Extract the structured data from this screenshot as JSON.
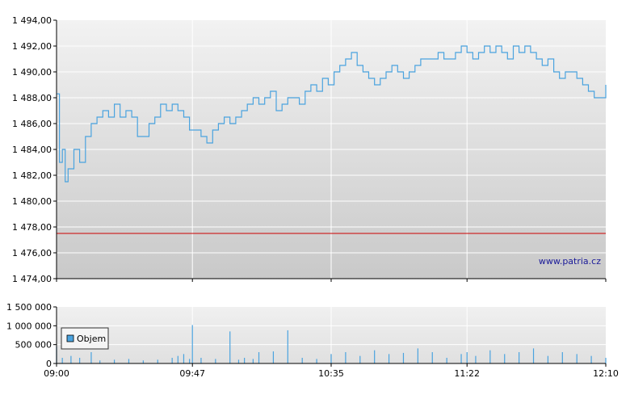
{
  "chart_data": [
    {
      "type": "line",
      "y_ticks": [
        "1 494,00",
        "1 492,00",
        "1 490,00",
        "1 488,00",
        "1 486,00",
        "1 484,00",
        "1 482,00",
        "1 480,00",
        "1 478,00",
        "1 476,00",
        "1 474,00"
      ],
      "ylim": [
        1474,
        1494
      ],
      "xlim": [
        "09:00",
        "12:10"
      ],
      "reference_line": {
        "value": 1477.5,
        "color": "#cc0000"
      },
      "series_color": "#4aa3df",
      "series": [
        {
          "x": [
            "09:00",
            "09:01",
            "09:02",
            "09:03",
            "09:04",
            "09:06",
            "09:08",
            "09:10",
            "09:12",
            "09:14",
            "09:16",
            "09:18",
            "09:20",
            "09:22",
            "09:24",
            "09:26",
            "09:28",
            "09:30",
            "09:32",
            "09:34",
            "09:36",
            "09:38",
            "09:40",
            "09:42",
            "09:44",
            "09:46",
            "09:48",
            "09:50",
            "09:52",
            "09:54",
            "09:56",
            "09:58",
            "10:00",
            "10:02",
            "10:04",
            "10:06",
            "10:08",
            "10:10",
            "10:12",
            "10:14",
            "10:16",
            "10:18",
            "10:20",
            "10:22",
            "10:24",
            "10:26",
            "10:28",
            "10:30",
            "10:32",
            "10:34",
            "10:36",
            "10:38",
            "10:40",
            "10:42",
            "10:44",
            "10:46",
            "10:48",
            "10:50",
            "10:52",
            "10:54",
            "10:56",
            "10:58",
            "11:00",
            "11:02",
            "11:04",
            "11:06",
            "11:08",
            "11:10",
            "11:12",
            "11:14",
            "11:16",
            "11:18",
            "11:20",
            "11:22",
            "11:24",
            "11:26",
            "11:28",
            "11:30",
            "11:32",
            "11:34",
            "11:36",
            "11:38",
            "11:40",
            "11:42",
            "11:44",
            "11:46",
            "11:48",
            "11:50",
            "11:52",
            "11:54",
            "11:56",
            "11:58",
            "12:00",
            "12:02",
            "12:04",
            "12:06",
            "12:08",
            "12:10"
          ],
          "values": [
            1488.3,
            1483.0,
            1484.0,
            1481.5,
            1482.5,
            1484.0,
            1483.0,
            1485.0,
            1486.0,
            1486.5,
            1487.0,
            1486.5,
            1487.5,
            1486.5,
            1487.0,
            1486.5,
            1485.0,
            1485.0,
            1486.0,
            1486.5,
            1487.5,
            1487.0,
            1487.5,
            1487.0,
            1486.5,
            1485.5,
            1485.5,
            1485.0,
            1484.5,
            1485.5,
            1486.0,
            1486.5,
            1486.0,
            1486.5,
            1487.0,
            1487.5,
            1488.0,
            1487.5,
            1488.0,
            1488.5,
            1487.0,
            1487.5,
            1488.0,
            1488.0,
            1487.5,
            1488.5,
            1489.0,
            1488.5,
            1489.5,
            1489.0,
            1490.0,
            1490.5,
            1491.0,
            1491.5,
            1490.5,
            1490.0,
            1489.5,
            1489.0,
            1489.5,
            1490.0,
            1490.5,
            1490.0,
            1489.5,
            1490.0,
            1490.5,
            1491.0,
            1491.0,
            1491.0,
            1491.5,
            1491.0,
            1491.0,
            1491.5,
            1492.0,
            1491.5,
            1491.0,
            1491.5,
            1492.0,
            1491.5,
            1492.0,
            1491.5,
            1491.0,
            1492.0,
            1491.5,
            1492.0,
            1491.5,
            1491.0,
            1490.5,
            1491.0,
            1490.0,
            1489.5,
            1490.0,
            1490.0,
            1489.5,
            1489.0,
            1488.5,
            1488.0,
            1488.0,
            1489.0
          ]
        }
      ],
      "watermark": "www.patria.cz"
    },
    {
      "type": "bar",
      "y_ticks": [
        "1 500 000",
        "1 000 000",
        "500 000",
        "0"
      ],
      "ylim": [
        0,
        1500000
      ],
      "x_ticks": [
        "09:00",
        "09:47",
        "10:35",
        "11:22",
        "12:10"
      ],
      "bar_color": "#4aa3df",
      "series": [
        {
          "name": "Objem",
          "x": [
            "09:00",
            "09:02",
            "09:05",
            "09:08",
            "09:12",
            "09:15",
            "09:20",
            "09:25",
            "09:30",
            "09:35",
            "09:40",
            "09:42",
            "09:44",
            "09:46",
            "09:47",
            "09:50",
            "09:55",
            "10:00",
            "10:03",
            "10:05",
            "10:08",
            "10:10",
            "10:15",
            "10:20",
            "10:25",
            "10:30",
            "10:35",
            "10:40",
            "10:45",
            "10:50",
            "10:55",
            "11:00",
            "11:05",
            "11:10",
            "11:15",
            "11:20",
            "11:22",
            "11:25",
            "11:30",
            "11:35",
            "11:40",
            "11:45",
            "11:50",
            "11:55",
            "12:00",
            "12:05",
            "12:10"
          ],
          "values": [
            450000,
            150000,
            200000,
            150000,
            300000,
            80000,
            100000,
            120000,
            80000,
            100000,
            150000,
            200000,
            250000,
            120000,
            1020000,
            150000,
            120000,
            850000,
            100000,
            150000,
            120000,
            300000,
            320000,
            880000,
            150000,
            120000,
            250000,
            300000,
            200000,
            350000,
            250000,
            280000,
            400000,
            300000,
            150000,
            250000,
            300000,
            200000,
            350000,
            250000,
            300000,
            400000,
            200000,
            300000,
            250000,
            200000,
            150000
          ]
        }
      ]
    }
  ]
}
